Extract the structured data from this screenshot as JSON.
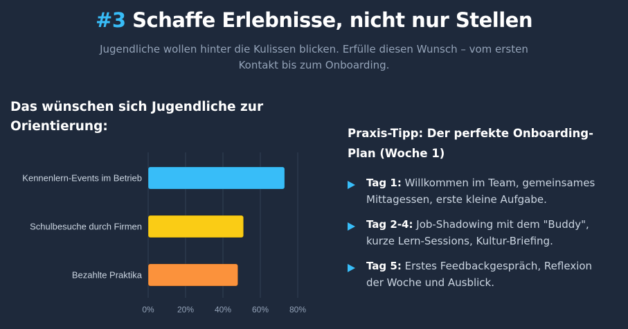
{
  "header": {
    "number": "#3",
    "title": "Schaffe Erlebnisse, nicht nur Stellen",
    "subtitle": "Jugendliche wollen hinter die Kulissen blicken. Erfülle diesen Wunsch – vom ersten Kontakt bis zum Onboarding."
  },
  "chart_data": {
    "type": "bar",
    "orientation": "horizontal",
    "title": "Das wünschen sich Jugendliche zur Orientierung:",
    "categories": [
      "Kennenlern-Events im Betrieb",
      "Schulbesuche durch Firmen",
      "Bezahlte Praktika"
    ],
    "values": [
      73,
      51,
      48
    ],
    "colors": [
      "#38bdf8",
      "#facc15",
      "#fb923c"
    ],
    "xlim": [
      0,
      80
    ],
    "xticks": [
      "0%",
      "20%",
      "40%",
      "60%",
      "80%"
    ],
    "xlabel": "",
    "ylabel": "",
    "grid": true
  },
  "tip": {
    "title": "Praxis-Tipp: Der perfekte Onboarding-Plan (Woche 1)",
    "items": [
      {
        "label": "Tag 1:",
        "text": "Willkommen im Team, gemeinsames Mittagessen, erste kleine Aufgabe."
      },
      {
        "label": "Tag 2-4:",
        "text": "Job-Shadowing mit dem \"Buddy\", kurze Lern-Sessions, Kultur-Briefing."
      },
      {
        "label": "Tag 5:",
        "text": "Erstes Feedbackgespräch, Reflexion der Woche und Ausblick."
      }
    ]
  }
}
